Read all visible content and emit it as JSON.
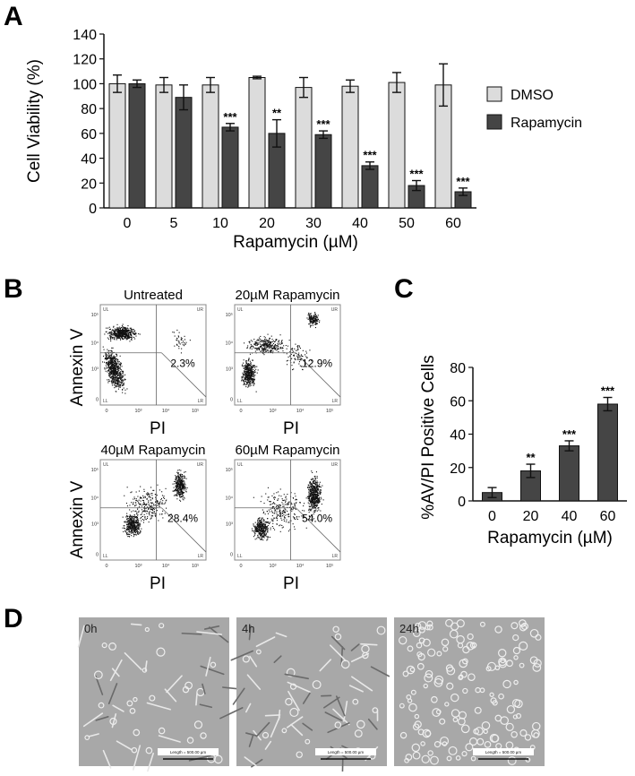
{
  "panels": {
    "A": {
      "letter": "A"
    },
    "B": {
      "letter": "B"
    },
    "C": {
      "letter": "C"
    },
    "D": {
      "letter": "D"
    }
  },
  "colors": {
    "dmso": "#dcdcdc",
    "rapamycin": "#454545",
    "axis": "#111111",
    "micrograph_bg": "#a8a8a8"
  },
  "chart_data": [
    {
      "panel": "A",
      "type": "bar",
      "title": "",
      "xlabel": "Rapamycin (µM)",
      "ylabel": "Cell Viability (%)",
      "ylim": [
        0,
        140
      ],
      "yticks": [
        "0",
        "20",
        "40",
        "60",
        "80",
        "100",
        "120",
        "140"
      ],
      "categories": [
        "0",
        "5",
        "10",
        "20",
        "30",
        "40",
        "50",
        "60"
      ],
      "legend_position": "right",
      "series": [
        {
          "name": "DMSO",
          "color": "#dcdcdc",
          "values": [
            100,
            99,
            99,
            105,
            97,
            98,
            101,
            99
          ],
          "errors": [
            7,
            6,
            6,
            1,
            8,
            5,
            8,
            17
          ],
          "annotations": [
            "",
            "",
            "",
            "",
            "",
            "",
            "",
            ""
          ]
        },
        {
          "name": "Rapamycin",
          "color": "#454545",
          "values": [
            100,
            89,
            65,
            60,
            59,
            34,
            18,
            13
          ],
          "errors": [
            3,
            10,
            3,
            11,
            3,
            3,
            4,
            3
          ],
          "annotations": [
            "",
            "",
            "***",
            "**",
            "***",
            "***",
            "***",
            "***"
          ]
        }
      ]
    },
    {
      "panel": "C",
      "type": "bar",
      "title": "",
      "xlabel": "Rapamycin (µM)",
      "ylabel": "%AV/PI Positive Cells",
      "ylim": [
        0,
        80
      ],
      "yticks": [
        "0",
        "20",
        "40",
        "60",
        "80"
      ],
      "categories": [
        "0",
        "20",
        "40",
        "60"
      ],
      "series": [
        {
          "color": "#454545",
          "values": [
            5,
            18,
            33,
            58
          ],
          "errors": [
            3,
            4,
            3,
            4
          ],
          "annotations": [
            "",
            "**",
            "***",
            "***"
          ]
        }
      ]
    }
  ],
  "flow_cytometry": {
    "ylabel": "Annexin V",
    "xlabel": "PI",
    "quadrant_labels": [
      "UL",
      "UR",
      "LL",
      "LR"
    ],
    "axis_tick_labels": [
      "0",
      "10³",
      "10⁴",
      "10⁵"
    ],
    "plots": [
      {
        "title": "Untreated",
        "percent": "2.3%"
      },
      {
        "title": "20µM Rapamycin",
        "percent": "12.9%"
      },
      {
        "title": "40µM Rapamycin",
        "percent": "28.4%"
      },
      {
        "title": "60µM Rapamycin",
        "percent": "54.0%"
      }
    ]
  },
  "micrographs": [
    {
      "time": "0h",
      "scale_text": "Length = 500.00 µm"
    },
    {
      "time": "4h",
      "scale_text": "Length = 500.00 µm"
    },
    {
      "time": "24h",
      "scale_text": "Length = 500.00 µm"
    }
  ]
}
